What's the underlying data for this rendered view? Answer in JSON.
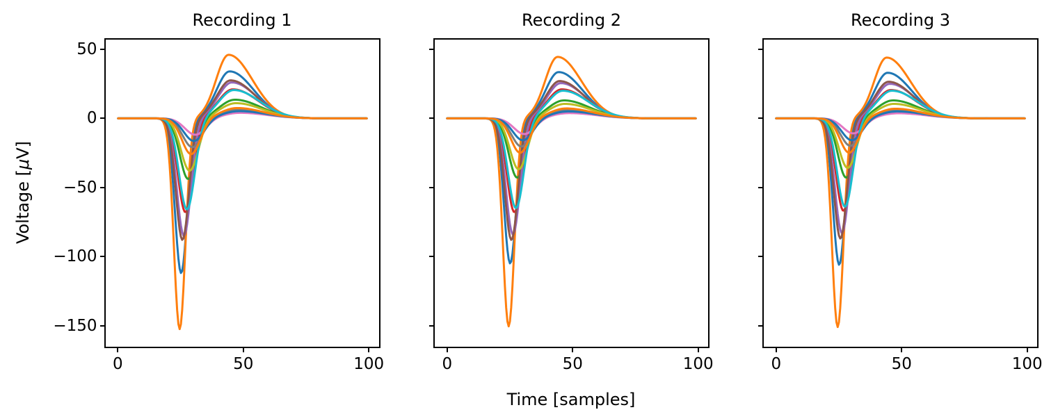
{
  "labels": {
    "x": "Time [samples]",
    "y_pre": "Voltage [",
    "y_mu": "μ",
    "y_post": "V]"
  },
  "axis_color": "#000000",
  "background_color": "#ffffff",
  "chart_data": [
    {
      "type": "line",
      "title": "Recording 1",
      "xlabel": "Time [samples]",
      "ylabel": "Voltage [μV]",
      "x_start": 0,
      "x_end": 99,
      "xlim": [
        -4.95,
        103.95
      ],
      "ylim": [
        -165,
        57
      ],
      "xticks": [
        0,
        50,
        100
      ],
      "yticks": [
        50,
        0,
        -50,
        -100,
        -150
      ],
      "show_y_tick_labels": true,
      "grid": false,
      "legend": "none",
      "series": [
        {
          "name": "blue-large",
          "color": "#1f77b4",
          "trough": -112,
          "peak": 34,
          "t_trough": 25.1,
          "sigma_trough": 2.47,
          "t_peak": 44.4,
          "sigma_rise": 5.2,
          "sigma_decay": 9.6
        },
        {
          "name": "orange-large",
          "color": "#ff7f0e",
          "trough": -152.5,
          "peak": 46,
          "t_trough": 24.5,
          "sigma_trough": 2.3,
          "t_peak": 44.0,
          "sigma_rise": 5.0,
          "sigma_decay": 9.5
        },
        {
          "name": "green",
          "color": "#2ca02c",
          "trough": -44,
          "peak": 13.5,
          "t_trough": 27.9,
          "sigma_trough": 3.32,
          "t_peak": 46.5,
          "sigma_rise": 6.1,
          "sigma_decay": 10.3
        },
        {
          "name": "red",
          "color": "#d62728",
          "trough": -68,
          "peak": 21,
          "t_trough": 26.8,
          "sigma_trough": 2.98,
          "t_peak": 45.7,
          "sigma_rise": 5.7,
          "sigma_decay": 10.1
        },
        {
          "name": "purple",
          "color": "#9467bd",
          "trough": -85,
          "peak": 26,
          "t_trough": 26.2,
          "sigma_trough": 2.81,
          "t_peak": 45.3,
          "sigma_rise": 5.5,
          "sigma_decay": 9.9
        },
        {
          "name": "brown",
          "color": "#8c564b",
          "trough": -88,
          "peak": 27.5,
          "t_trough": 25.6,
          "sigma_trough": 2.64,
          "t_peak": 44.8,
          "sigma_rise": 5.4,
          "sigma_decay": 9.8
        },
        {
          "name": "pink",
          "color": "#e377c2",
          "trough": -12,
          "peak": 4,
          "t_trough": 30.8,
          "sigma_trough": 4.17,
          "t_peak": 48.6,
          "sigma_rise": 7.0,
          "sigma_decay": 11.0
        },
        {
          "name": "gray",
          "color": "#7f7f7f",
          "trough": -21,
          "peak": 6.3,
          "t_trough": 29.6,
          "sigma_trough": 3.83,
          "t_peak": 47.8,
          "sigma_rise": 6.6,
          "sigma_decay": 10.8
        },
        {
          "name": "olive",
          "color": "#bcbd22",
          "trough": -38,
          "peak": 11,
          "t_trough": 28.5,
          "sigma_trough": 3.49,
          "t_peak": 46.9,
          "sigma_rise": 6.3,
          "sigma_decay": 10.5
        },
        {
          "name": "cyan",
          "color": "#17becf",
          "trough": -66,
          "peak": 20.5,
          "t_trough": 27.4,
          "sigma_trough": 3.15,
          "t_peak": 46.1,
          "sigma_rise": 5.9,
          "sigma_decay": 10.2
        },
        {
          "name": "blue-small",
          "color": "#1f77b4",
          "trough": -16.5,
          "peak": 5.2,
          "t_trough": 30.2,
          "sigma_trough": 4.0,
          "t_peak": 48.2,
          "sigma_rise": 6.8,
          "sigma_decay": 10.9
        },
        {
          "name": "orange-small",
          "color": "#ff7f0e",
          "trough": -26,
          "peak": 7.5,
          "t_trough": 29.1,
          "sigma_trough": 3.66,
          "t_peak": 47.4,
          "sigma_rise": 6.4,
          "sigma_decay": 10.6
        }
      ]
    },
    {
      "type": "line",
      "title": "Recording 2",
      "xlabel": "Time [samples]",
      "ylabel": "Voltage [μV]",
      "x_start": 0,
      "x_end": 99,
      "xlim": [
        -4.95,
        103.95
      ],
      "ylim": [
        -165,
        57
      ],
      "xticks": [
        0,
        50,
        100
      ],
      "yticks": [
        50,
        0,
        -50,
        -100,
        -150
      ],
      "show_y_tick_labels": false,
      "grid": false,
      "legend": "none",
      "series": [
        {
          "name": "blue-large",
          "color": "#1f77b4",
          "trough": -105,
          "peak": 33.5,
          "t_trough": 25.1,
          "sigma_trough": 2.47,
          "t_peak": 44.4,
          "sigma_rise": 5.2,
          "sigma_decay": 9.6
        },
        {
          "name": "orange-large",
          "color": "#ff7f0e",
          "trough": -150.5,
          "peak": 44.5,
          "t_trough": 24.5,
          "sigma_trough": 2.3,
          "t_peak": 44.0,
          "sigma_rise": 5.0,
          "sigma_decay": 9.5
        },
        {
          "name": "green",
          "color": "#2ca02c",
          "trough": -43,
          "peak": 13,
          "t_trough": 27.9,
          "sigma_trough": 3.32,
          "t_peak": 46.5,
          "sigma_rise": 6.1,
          "sigma_decay": 10.3
        },
        {
          "name": "red",
          "color": "#d62728",
          "trough": -68,
          "peak": 21,
          "t_trough": 26.8,
          "sigma_trough": 2.98,
          "t_peak": 45.7,
          "sigma_rise": 5.7,
          "sigma_decay": 10.1
        },
        {
          "name": "purple",
          "color": "#9467bd",
          "trough": -84,
          "peak": 25.5,
          "t_trough": 26.2,
          "sigma_trough": 2.81,
          "t_peak": 45.3,
          "sigma_rise": 5.5,
          "sigma_decay": 9.9
        },
        {
          "name": "brown",
          "color": "#8c564b",
          "trough": -88,
          "peak": 27,
          "t_trough": 25.6,
          "sigma_trough": 2.64,
          "t_peak": 44.8,
          "sigma_rise": 5.4,
          "sigma_decay": 9.8
        },
        {
          "name": "pink",
          "color": "#e377c2",
          "trough": -11.5,
          "peak": 3.8,
          "t_trough": 30.8,
          "sigma_trough": 4.17,
          "t_peak": 48.6,
          "sigma_rise": 7.0,
          "sigma_decay": 11.0
        },
        {
          "name": "gray",
          "color": "#7f7f7f",
          "trough": -20.5,
          "peak": 6.2,
          "t_trough": 29.6,
          "sigma_trough": 3.83,
          "t_peak": 47.8,
          "sigma_rise": 6.6,
          "sigma_decay": 10.8
        },
        {
          "name": "olive",
          "color": "#bcbd22",
          "trough": -37,
          "peak": 10.5,
          "t_trough": 28.5,
          "sigma_trough": 3.49,
          "t_peak": 46.9,
          "sigma_rise": 6.3,
          "sigma_decay": 10.5
        },
        {
          "name": "cyan",
          "color": "#17becf",
          "trough": -65,
          "peak": 20,
          "t_trough": 27.4,
          "sigma_trough": 3.15,
          "t_peak": 46.1,
          "sigma_rise": 5.9,
          "sigma_decay": 10.2
        },
        {
          "name": "blue-small",
          "color": "#1f77b4",
          "trough": -16,
          "peak": 5,
          "t_trough": 30.2,
          "sigma_trough": 4.0,
          "t_peak": 48.2,
          "sigma_rise": 6.8,
          "sigma_decay": 10.9
        },
        {
          "name": "orange-small",
          "color": "#ff7f0e",
          "trough": -25,
          "peak": 7.2,
          "t_trough": 29.1,
          "sigma_trough": 3.66,
          "t_peak": 47.4,
          "sigma_rise": 6.4,
          "sigma_decay": 10.6
        }
      ]
    },
    {
      "type": "line",
      "title": "Recording 3",
      "xlabel": "Time [samples]",
      "ylabel": "Voltage [μV]",
      "x_start": 0,
      "x_end": 99,
      "xlim": [
        -4.95,
        103.95
      ],
      "ylim": [
        -165,
        57
      ],
      "xticks": [
        0,
        50,
        100
      ],
      "yticks": [
        50,
        0,
        -50,
        -100,
        -150
      ],
      "show_y_tick_labels": false,
      "grid": false,
      "legend": "none",
      "series": [
        {
          "name": "blue-large",
          "color": "#1f77b4",
          "trough": -106,
          "peak": 33,
          "t_trough": 25.1,
          "sigma_trough": 2.47,
          "t_peak": 44.4,
          "sigma_rise": 5.2,
          "sigma_decay": 9.6
        },
        {
          "name": "orange-large",
          "color": "#ff7f0e",
          "trough": -151,
          "peak": 44,
          "t_trough": 24.5,
          "sigma_trough": 2.3,
          "t_peak": 44.0,
          "sigma_rise": 5.0,
          "sigma_decay": 9.5
        },
        {
          "name": "green",
          "color": "#2ca02c",
          "trough": -43,
          "peak": 13,
          "t_trough": 27.9,
          "sigma_trough": 3.32,
          "t_peak": 46.5,
          "sigma_rise": 6.1,
          "sigma_decay": 10.3
        },
        {
          "name": "red",
          "color": "#d62728",
          "trough": -67,
          "peak": 20.5,
          "t_trough": 26.8,
          "sigma_trough": 2.98,
          "t_peak": 45.7,
          "sigma_rise": 5.7,
          "sigma_decay": 10.1
        },
        {
          "name": "purple",
          "color": "#9467bd",
          "trough": -83,
          "peak": 25,
          "t_trough": 26.2,
          "sigma_trough": 2.81,
          "t_peak": 45.3,
          "sigma_rise": 5.5,
          "sigma_decay": 9.9
        },
        {
          "name": "brown",
          "color": "#8c564b",
          "trough": -87,
          "peak": 26.5,
          "t_trough": 25.6,
          "sigma_trough": 2.64,
          "t_peak": 44.8,
          "sigma_rise": 5.4,
          "sigma_decay": 9.8
        },
        {
          "name": "pink",
          "color": "#e377c2",
          "trough": -11,
          "peak": 3.7,
          "t_trough": 30.8,
          "sigma_trough": 4.17,
          "t_peak": 48.6,
          "sigma_rise": 7.0,
          "sigma_decay": 11.0
        },
        {
          "name": "gray",
          "color": "#7f7f7f",
          "trough": -20,
          "peak": 6,
          "t_trough": 29.6,
          "sigma_trough": 3.83,
          "t_peak": 47.8,
          "sigma_rise": 6.6,
          "sigma_decay": 10.8
        },
        {
          "name": "olive",
          "color": "#bcbd22",
          "trough": -36,
          "peak": 10.5,
          "t_trough": 28.5,
          "sigma_trough": 3.49,
          "t_peak": 46.9,
          "sigma_rise": 6.3,
          "sigma_decay": 10.5
        },
        {
          "name": "cyan",
          "color": "#17becf",
          "trough": -64,
          "peak": 20,
          "t_trough": 27.4,
          "sigma_trough": 3.15,
          "t_peak": 46.1,
          "sigma_rise": 5.9,
          "sigma_decay": 10.2
        },
        {
          "name": "blue-small",
          "color": "#1f77b4",
          "trough": -16,
          "peak": 5,
          "t_trough": 30.2,
          "sigma_trough": 4.0,
          "t_peak": 48.2,
          "sigma_rise": 6.8,
          "sigma_decay": 10.9
        },
        {
          "name": "orange-small",
          "color": "#ff7f0e",
          "trough": -25,
          "peak": 7,
          "t_trough": 29.1,
          "sigma_trough": 3.66,
          "t_peak": 47.4,
          "sigma_rise": 6.4,
          "sigma_decay": 10.6
        }
      ]
    }
  ]
}
